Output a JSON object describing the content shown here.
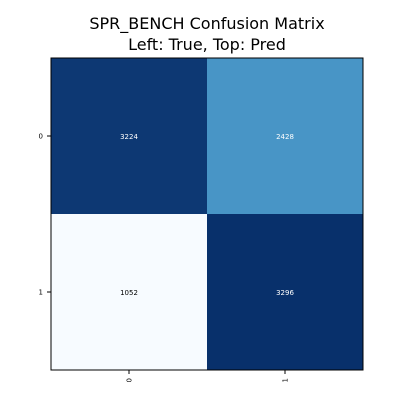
{
  "chart_data": {
    "type": "heatmap",
    "title_lines": [
      "SPR_BENCH Confusion Matrix",
      "Left: True, Top: Pred"
    ],
    "rows": [
      "0",
      "1"
    ],
    "cols": [
      "0",
      "1"
    ],
    "values": [
      [
        3224,
        2428
      ],
      [
        1052,
        3296
      ]
    ],
    "colormap": "Blues",
    "xlabel": "",
    "ylabel": "",
    "grid": false
  },
  "colors": {
    "cell_light": "#f7fbff",
    "cell_mid": "#4a98c9",
    "cell_dark": "#08306b",
    "text_on_dark": "#ffffff",
    "text_on_light": "#000000",
    "frame": "#000000"
  }
}
